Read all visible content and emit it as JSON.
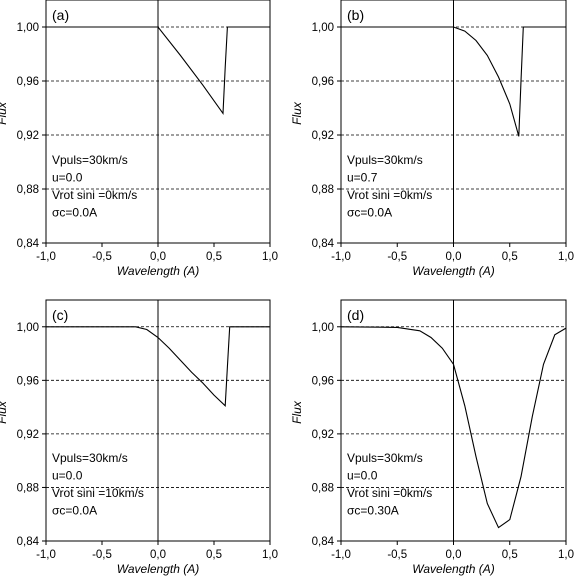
{
  "chart_data": [
    {
      "type": "line",
      "panel_label": "(a)",
      "xlabel": "Wavelength (A)",
      "ylabel": "Flux",
      "xlim": [
        -1.0,
        1.0
      ],
      "ylim": [
        0.84,
        1.02
      ],
      "x_ticks": [
        "-1,0",
        "-0,5",
        "0,0",
        "0,5",
        "1,0"
      ],
      "y_ticks": [
        "1,00",
        "0,96",
        "0,92",
        "0,88",
        "0,84"
      ],
      "grid": "horizontal-dashed",
      "annotations": [
        "Vpuls=30km/s",
        "u=0.0",
        "Vrot sini =0km/s",
        "σc=0.0A"
      ],
      "x": [
        -1.0,
        0.0,
        0.2,
        0.4,
        0.58,
        0.6,
        0.62,
        1.0
      ],
      "y": [
        1.0,
        1.0,
        0.979,
        0.957,
        0.936,
        0.97,
        1.0,
        1.0
      ]
    },
    {
      "type": "line",
      "panel_label": "(b)",
      "xlabel": "Wavelength (A)",
      "ylabel": "Flux",
      "xlim": [
        -1.0,
        1.0
      ],
      "ylim": [
        0.84,
        1.02
      ],
      "x_ticks": [
        "-1,0",
        "-0,5",
        "0,0",
        "0,5",
        "1,0"
      ],
      "y_ticks": [
        "1,00",
        "0,96",
        "0,92",
        "0,88",
        "0,84"
      ],
      "grid": "horizontal-dashed",
      "annotations": [
        "Vpuls=30km/s",
        "u=0.7",
        "Vrot sini =0km/s",
        "σc=0.0A"
      ],
      "x": [
        -1.0,
        0.0,
        0.1,
        0.2,
        0.3,
        0.4,
        0.5,
        0.58,
        0.6,
        0.62,
        1.0
      ],
      "y": [
        1.0,
        1.0,
        0.997,
        0.99,
        0.979,
        0.963,
        0.943,
        0.919,
        0.96,
        1.0,
        1.0
      ]
    },
    {
      "type": "line",
      "panel_label": "(c)",
      "xlabel": "Wavelength (A)",
      "ylabel": "Flux",
      "xlim": [
        -1.0,
        1.0
      ],
      "ylim": [
        0.84,
        1.02
      ],
      "x_ticks": [
        "-1,0",
        "-0,5",
        "0,0",
        "0,5",
        "1,0"
      ],
      "y_ticks": [
        "1,00",
        "0,96",
        "0,92",
        "0,88",
        "0,84"
      ],
      "grid": "horizontal-dashed",
      "annotations": [
        "Vpuls=30km/s",
        "u=0.0",
        "Vrot sini =10km/s",
        "σc=0.0A"
      ],
      "x": [
        -1.0,
        -0.2,
        -0.1,
        0.0,
        0.1,
        0.2,
        0.3,
        0.4,
        0.5,
        0.6,
        0.62,
        0.64,
        1.0
      ],
      "y": [
        1.0,
        1.0,
        0.998,
        0.992,
        0.984,
        0.975,
        0.966,
        0.958,
        0.949,
        0.941,
        0.97,
        1.0,
        1.0
      ]
    },
    {
      "type": "line",
      "panel_label": "(d)",
      "xlabel": "Wavelength (A)",
      "ylabel": "Flux",
      "xlim": [
        -1.0,
        1.0
      ],
      "ylim": [
        0.84,
        1.02
      ],
      "x_ticks": [
        "-1,0",
        "-0,5",
        "0,0",
        "0,5",
        "1,0"
      ],
      "y_ticks": [
        "1,00",
        "0,96",
        "0,92",
        "0,88",
        "0,84"
      ],
      "grid": "horizontal-dashed",
      "annotations": [
        "Vpuls=30km/s",
        "u=0.0",
        "Vrot sini =0km/s",
        "σc=0.30A"
      ],
      "x": [
        -1.0,
        -0.5,
        -0.3,
        -0.2,
        -0.1,
        0.0,
        0.1,
        0.2,
        0.3,
        0.4,
        0.5,
        0.6,
        0.7,
        0.8,
        0.9,
        1.0
      ],
      "y": [
        1.0,
        0.9995,
        0.997,
        0.992,
        0.984,
        0.972,
        0.941,
        0.903,
        0.868,
        0.85,
        0.856,
        0.888,
        0.933,
        0.972,
        0.994,
        0.999
      ]
    }
  ]
}
